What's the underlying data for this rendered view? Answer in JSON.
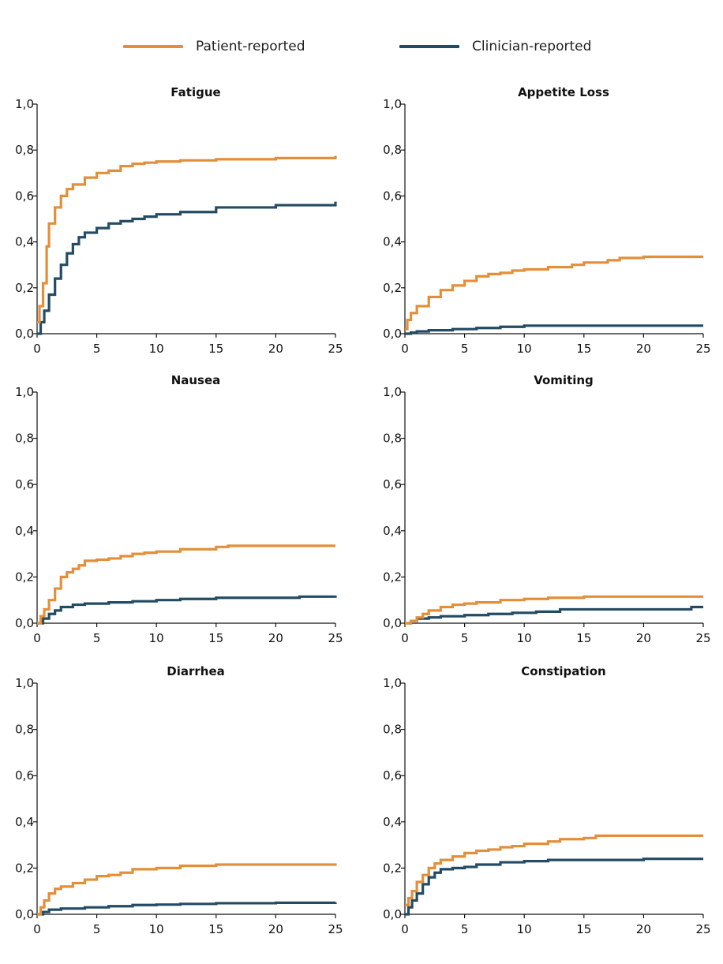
{
  "legend": {
    "items": [
      {
        "label": "Patient-reported",
        "color": "#E38F3A"
      },
      {
        "label": "Clinician-reported",
        "color": "#234B63"
      }
    ]
  },
  "chart_data": [
    {
      "type": "line",
      "title": "Fatigue",
      "xlim": [
        0,
        25
      ],
      "ylim": [
        0,
        1
      ],
      "xticks": [
        "0",
        "5",
        "10",
        "15",
        "20",
        "25"
      ],
      "yticks": [
        "0,0",
        "0,2",
        "0,4",
        "0,6",
        "0,8",
        "1,0"
      ],
      "series": [
        {
          "name": "Patient-reported",
          "x": [
            0,
            0.2,
            0.5,
            0.8,
            1.0,
            1.5,
            2,
            2.5,
            3,
            4,
            5,
            6,
            7,
            8,
            9,
            10,
            12,
            15,
            20,
            25
          ],
          "y": [
            0.05,
            0.12,
            0.22,
            0.38,
            0.48,
            0.55,
            0.6,
            0.63,
            0.65,
            0.68,
            0.7,
            0.71,
            0.73,
            0.74,
            0.745,
            0.75,
            0.755,
            0.76,
            0.765,
            0.775
          ]
        },
        {
          "name": "Clinician-reported",
          "x": [
            0,
            0.3,
            0.6,
            1,
            1.5,
            2,
            2.5,
            3,
            3.5,
            4,
            5,
            6,
            7,
            8,
            9,
            10,
            12,
            15,
            20,
            25
          ],
          "y": [
            0.0,
            0.05,
            0.1,
            0.17,
            0.24,
            0.3,
            0.35,
            0.39,
            0.42,
            0.44,
            0.46,
            0.48,
            0.49,
            0.5,
            0.51,
            0.52,
            0.53,
            0.55,
            0.56,
            0.575
          ]
        }
      ]
    },
    {
      "type": "line",
      "title": "Appetite Loss",
      "xlim": [
        0,
        25
      ],
      "ylim": [
        0,
        1
      ],
      "xticks": [
        "0",
        "5",
        "10",
        "15",
        "20",
        "25"
      ],
      "yticks": [
        "0,0",
        "0,2",
        "0,4",
        "0,6",
        "0,8",
        "1,0"
      ],
      "series": [
        {
          "name": "Patient-reported",
          "x": [
            0,
            0.2,
            0.5,
            1,
            2,
            3,
            4,
            5,
            6,
            7,
            8,
            9,
            10,
            12,
            14,
            15,
            17,
            18,
            20,
            25
          ],
          "y": [
            0.02,
            0.06,
            0.09,
            0.12,
            0.16,
            0.19,
            0.21,
            0.23,
            0.25,
            0.26,
            0.265,
            0.275,
            0.28,
            0.29,
            0.3,
            0.31,
            0.32,
            0.33,
            0.335,
            0.335
          ]
        },
        {
          "name": "Clinician-reported",
          "x": [
            0,
            0.5,
            1,
            2,
            4,
            6,
            8,
            10,
            15,
            20,
            25
          ],
          "y": [
            0.0,
            0.005,
            0.01,
            0.015,
            0.02,
            0.025,
            0.03,
            0.035,
            0.035,
            0.035,
            0.035
          ]
        }
      ]
    },
    {
      "type": "line",
      "title": "Nausea",
      "xlim": [
        0,
        25
      ],
      "ylim": [
        0,
        1
      ],
      "xticks": [
        "0",
        "5",
        "10",
        "15",
        "20",
        "25"
      ],
      "yticks": [
        "0,0",
        "0,2",
        "0,4",
        "0,6",
        "0,8",
        "1,0"
      ],
      "series": [
        {
          "name": "Patient-reported",
          "x": [
            0,
            0.3,
            0.6,
            1,
            1.5,
            2,
            2.5,
            3,
            3.5,
            4,
            5,
            6,
            7,
            8,
            9,
            10,
            12,
            15,
            16,
            20,
            25
          ],
          "y": [
            0.0,
            0.03,
            0.06,
            0.1,
            0.15,
            0.2,
            0.22,
            0.235,
            0.25,
            0.27,
            0.275,
            0.28,
            0.29,
            0.3,
            0.305,
            0.31,
            0.32,
            0.33,
            0.335,
            0.335,
            0.335
          ]
        },
        {
          "name": "Clinician-reported",
          "x": [
            0,
            0.5,
            1,
            1.5,
            2,
            3,
            4,
            6,
            8,
            10,
            12,
            15,
            20,
            22,
            25
          ],
          "y": [
            0.0,
            0.02,
            0.04,
            0.055,
            0.07,
            0.08,
            0.085,
            0.09,
            0.095,
            0.1,
            0.105,
            0.11,
            0.11,
            0.115,
            0.12
          ]
        }
      ]
    },
    {
      "type": "line",
      "title": "Vomiting",
      "xlim": [
        0,
        25
      ],
      "ylim": [
        0,
        1
      ],
      "xticks": [
        "0",
        "5",
        "10",
        "15",
        "20",
        "25"
      ],
      "yticks": [
        "0,0",
        "0,2",
        "0,4",
        "0,6",
        "0,8",
        "1,0"
      ],
      "series": [
        {
          "name": "Patient-reported",
          "x": [
            0,
            0.5,
            1,
            1.5,
            2,
            3,
            4,
            5,
            6,
            8,
            10,
            12,
            15,
            20,
            25
          ],
          "y": [
            0.0,
            0.01,
            0.025,
            0.04,
            0.055,
            0.07,
            0.08,
            0.085,
            0.09,
            0.1,
            0.105,
            0.11,
            0.115,
            0.115,
            0.115
          ]
        },
        {
          "name": "Clinician-reported",
          "x": [
            0,
            0.5,
            1,
            2,
            3,
            5,
            7,
            9,
            11,
            13,
            15,
            20,
            24,
            25
          ],
          "y": [
            0.0,
            0.01,
            0.02,
            0.025,
            0.03,
            0.035,
            0.04,
            0.045,
            0.05,
            0.06,
            0.06,
            0.06,
            0.07,
            0.07
          ]
        }
      ]
    },
    {
      "type": "line",
      "title": "Diarrhea",
      "xlim": [
        0,
        25
      ],
      "ylim": [
        0,
        1
      ],
      "xticks": [
        "0",
        "5",
        "10",
        "15",
        "20",
        "25"
      ],
      "yticks": [
        "0,0",
        "0,2",
        "0,4",
        "0,6",
        "0,8",
        "1,0"
      ],
      "series": [
        {
          "name": "Patient-reported",
          "x": [
            0,
            0.3,
            0.6,
            1,
            1.5,
            2,
            3,
            4,
            5,
            6,
            7,
            8,
            10,
            12,
            15,
            20,
            25
          ],
          "y": [
            0.0,
            0.03,
            0.06,
            0.09,
            0.11,
            0.12,
            0.135,
            0.15,
            0.165,
            0.17,
            0.18,
            0.195,
            0.2,
            0.21,
            0.215,
            0.215,
            0.22
          ]
        },
        {
          "name": "Clinician-reported",
          "x": [
            0,
            0.5,
            1,
            2,
            4,
            6,
            8,
            10,
            12,
            15,
            20,
            25
          ],
          "y": [
            0.0,
            0.01,
            0.02,
            0.025,
            0.03,
            0.035,
            0.04,
            0.042,
            0.045,
            0.048,
            0.05,
            0.052
          ]
        }
      ]
    },
    {
      "type": "line",
      "title": "Constipation",
      "xlim": [
        0,
        25
      ],
      "ylim": [
        0,
        1
      ],
      "xticks": [
        "0",
        "5",
        "10",
        "15",
        "20",
        "25"
      ],
      "yticks": [
        "0,0",
        "0,2",
        "0,4",
        "0,6",
        "0,8",
        "1,0"
      ],
      "series": [
        {
          "name": "Patient-reported",
          "x": [
            0,
            0.3,
            0.6,
            1,
            1.5,
            2,
            2.5,
            3,
            4,
            5,
            6,
            7,
            8,
            9,
            10,
            12,
            13,
            15,
            16,
            20,
            25
          ],
          "y": [
            0.04,
            0.07,
            0.1,
            0.14,
            0.17,
            0.2,
            0.22,
            0.235,
            0.25,
            0.265,
            0.275,
            0.28,
            0.29,
            0.295,
            0.305,
            0.315,
            0.325,
            0.33,
            0.34,
            0.34,
            0.34
          ]
        },
        {
          "name": "Clinician-reported",
          "x": [
            0,
            0.3,
            0.6,
            1,
            1.5,
            2,
            2.5,
            3,
            4,
            5,
            6,
            8,
            10,
            12,
            15,
            20,
            25
          ],
          "y": [
            0.0,
            0.03,
            0.06,
            0.09,
            0.13,
            0.16,
            0.18,
            0.195,
            0.2,
            0.205,
            0.215,
            0.225,
            0.23,
            0.235,
            0.235,
            0.24,
            0.24
          ]
        }
      ]
    }
  ]
}
